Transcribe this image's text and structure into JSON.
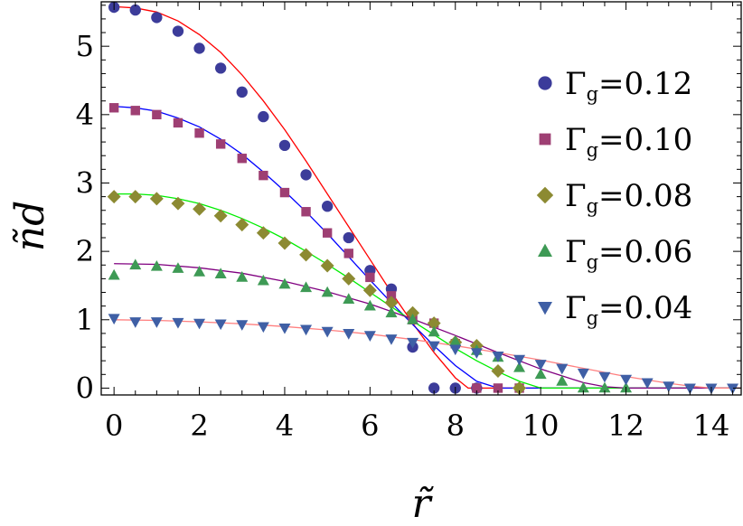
{
  "chart_data": {
    "type": "scatter",
    "xlabel": "r̃",
    "ylabel": "ñd",
    "xlim": [
      -0.3,
      14.7
    ],
    "ylim": [
      -0.1,
      5.65
    ],
    "x_ticks": [
      0,
      2,
      4,
      6,
      8,
      10,
      12,
      14
    ],
    "x_tick_labels": [
      "0",
      "2",
      "4",
      "6",
      "8",
      "10",
      "12",
      "14"
    ],
    "y_ticks": [
      0,
      1,
      2,
      3,
      4,
      5
    ],
    "y_tick_labels": [
      "0",
      "1",
      "2",
      "3",
      "4",
      "5"
    ],
    "grid": false,
    "legend_position": "right",
    "series": [
      {
        "name": "Γg=0.12",
        "legend_base": "Γ",
        "legend_sub": "g",
        "legend_rest": "=0.12",
        "marker": "circle",
        "marker_color": "#3c3c9a",
        "x": [
          0,
          0.5,
          1,
          1.5,
          2,
          2.5,
          3,
          3.5,
          4,
          4.5,
          5,
          5.5,
          6,
          6.5,
          7,
          7.5,
          8,
          8.5
        ],
        "y": [
          5.57,
          5.53,
          5.42,
          5.22,
          4.97,
          4.68,
          4.33,
          3.97,
          3.55,
          3.12,
          2.66,
          2.2,
          1.72,
          1.45,
          0.6,
          0.0,
          0.0,
          0.0
        ],
        "fit_color": "#ff0000",
        "fit_x": [
          0,
          0.5,
          1,
          1.5,
          2,
          2.5,
          3,
          3.5,
          4,
          4.5,
          5,
          5.5,
          6,
          6.5,
          7,
          7.5,
          8,
          8.3,
          8.6,
          14.7
        ],
        "fit_y": [
          5.58,
          5.56,
          5.5,
          5.37,
          5.17,
          4.91,
          4.58,
          4.2,
          3.78,
          3.32,
          2.84,
          2.36,
          1.88,
          1.4,
          0.95,
          0.52,
          0.15,
          0.0,
          0.0,
          0.0
        ]
      },
      {
        "name": "Γg=0.10",
        "legend_base": "Γ",
        "legend_sub": "g",
        "legend_rest": "=0.10",
        "marker": "square",
        "marker_color": "#9e3f73",
        "x": [
          0,
          0.5,
          1,
          1.5,
          2,
          2.5,
          3,
          3.5,
          4,
          4.5,
          5,
          5.5,
          6,
          6.5,
          7,
          7.5,
          8,
          8.5,
          9,
          9.5
        ],
        "y": [
          4.1,
          4.06,
          4.0,
          3.88,
          3.73,
          3.57,
          3.36,
          3.11,
          2.86,
          2.58,
          2.27,
          1.97,
          1.62,
          1.35,
          1.0,
          0.95,
          0.65,
          0.0,
          0.0,
          0.0
        ],
        "fit_color": "#0000ff",
        "fit_x": [
          0,
          0.5,
          1,
          1.5,
          2,
          2.5,
          3,
          3.5,
          4,
          4.5,
          5,
          5.5,
          6,
          6.5,
          7,
          7.5,
          8,
          8.5,
          9,
          14.7
        ],
        "fit_y": [
          4.12,
          4.1,
          4.05,
          3.95,
          3.82,
          3.64,
          3.42,
          3.16,
          2.88,
          2.58,
          2.26,
          1.92,
          1.58,
          1.25,
          0.93,
          0.62,
          0.33,
          0.1,
          0.0,
          0.0
        ]
      },
      {
        "name": "Γg=0.08",
        "legend_base": "Γ",
        "legend_sub": "g",
        "legend_rest": "=0.08",
        "marker": "diamond",
        "marker_color": "#8c8a32",
        "x": [
          0,
          0.5,
          1,
          1.5,
          2,
          2.5,
          3,
          3.5,
          4,
          4.5,
          5,
          5.5,
          6,
          6.5,
          7,
          7.5,
          8,
          8.5,
          9,
          9.5
        ],
        "y": [
          2.8,
          2.8,
          2.77,
          2.7,
          2.62,
          2.52,
          2.39,
          2.27,
          2.12,
          1.95,
          1.79,
          1.6,
          1.43,
          1.25,
          1.1,
          0.95,
          0.67,
          0.62,
          0.25,
          0.0
        ],
        "fit_color": "#00ee00",
        "fit_x": [
          0,
          0.5,
          1,
          1.5,
          2,
          2.5,
          3,
          3.5,
          4,
          4.5,
          5,
          5.5,
          6,
          6.5,
          7,
          7.5,
          8,
          8.5,
          9,
          9.5,
          10,
          14.7
        ],
        "fit_y": [
          2.84,
          2.84,
          2.82,
          2.77,
          2.7,
          2.6,
          2.48,
          2.34,
          2.18,
          2.0,
          1.81,
          1.61,
          1.4,
          1.19,
          0.98,
          0.78,
          0.58,
          0.4,
          0.24,
          0.1,
          0.0,
          0.0
        ]
      },
      {
        "name": "Γg=0.06",
        "legend_base": "Γ",
        "legend_sub": "g",
        "legend_rest": "=0.06",
        "marker": "triangle-up",
        "marker_color": "#3e9a55",
        "x": [
          0,
          0.5,
          1,
          1.5,
          2,
          2.5,
          3,
          3.5,
          4,
          4.5,
          5,
          5.5,
          6,
          6.5,
          7,
          7.5,
          8,
          8.5,
          9,
          9.5,
          10,
          10.5,
          11,
          11.5,
          12
        ],
        "y": [
          1.65,
          1.8,
          1.78,
          1.75,
          1.7,
          1.67,
          1.62,
          1.57,
          1.52,
          1.47,
          1.4,
          1.3,
          1.2,
          1.1,
          1.0,
          0.82,
          0.68,
          0.55,
          0.45,
          0.3,
          0.2,
          0.1,
          0.0,
          0.0,
          0.0
        ],
        "fit_color": "#800080",
        "fit_x": [
          0,
          1,
          2,
          3,
          4,
          5,
          6,
          7,
          8,
          9,
          10,
          11,
          11.5,
          12,
          14.7
        ],
        "fit_y": [
          1.82,
          1.81,
          1.76,
          1.68,
          1.56,
          1.41,
          1.23,
          1.01,
          0.77,
          0.52,
          0.28,
          0.08,
          0.02,
          0.0,
          0.0
        ]
      },
      {
        "name": "Γg=0.04",
        "legend_base": "Γ",
        "legend_sub": "g",
        "legend_rest": "=0.04",
        "marker": "triangle-down",
        "marker_color": "#3f5fa5",
        "x": [
          0,
          0.5,
          1,
          1.5,
          2,
          2.5,
          3,
          3.5,
          4,
          4.5,
          5,
          5.5,
          6,
          6.5,
          7,
          7.5,
          8,
          8.5,
          9,
          9.5,
          10,
          10.5,
          11,
          11.5,
          12,
          12.5,
          13,
          13.5,
          14,
          14.5
        ],
        "y": [
          1.02,
          0.97,
          0.97,
          0.96,
          0.95,
          0.94,
          0.93,
          0.9,
          0.88,
          0.86,
          0.83,
          0.8,
          0.77,
          0.72,
          0.67,
          0.62,
          0.57,
          0.52,
          0.47,
          0.42,
          0.35,
          0.29,
          0.22,
          0.17,
          0.13,
          0.08,
          0.03,
          0.0,
          0.0,
          0.0
        ],
        "fit_color": "#ff8080",
        "fit_x": [
          0,
          1,
          2,
          3,
          4,
          5,
          6,
          7,
          8,
          9,
          10,
          11,
          12,
          13,
          13.5,
          14,
          14.7
        ],
        "fit_y": [
          1.0,
          0.99,
          0.97,
          0.94,
          0.9,
          0.85,
          0.79,
          0.71,
          0.62,
          0.52,
          0.41,
          0.29,
          0.17,
          0.07,
          0.03,
          0.0,
          0.0
        ]
      }
    ]
  }
}
